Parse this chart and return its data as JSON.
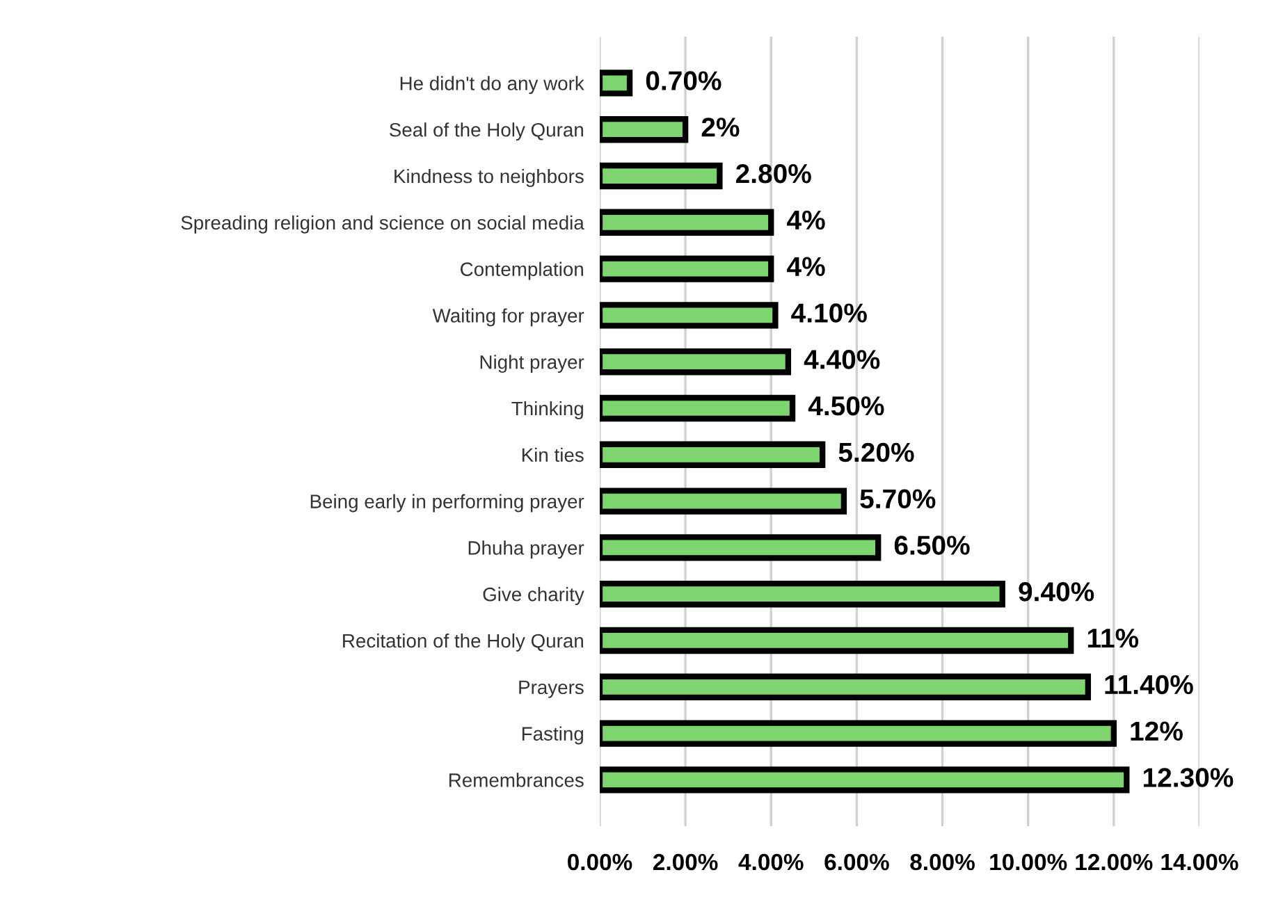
{
  "chart_data": {
    "type": "bar",
    "orientation": "horizontal",
    "categories": [
      "He didn't do any work",
      "Seal of the Holy Quran",
      "Kindness to neighbors",
      "Spreading religion and science on social media",
      "Contemplation",
      "Waiting for prayer",
      "Night prayer",
      "Thinking",
      "Kin ties",
      "Being early in performing prayer",
      "Dhuha prayer",
      "Give charity",
      "Recitation of the Holy Quran",
      "Prayers",
      "Fasting",
      "Remembrances"
    ],
    "values": [
      0.7,
      2,
      2.8,
      4,
      4,
      4.1,
      4.4,
      4.5,
      5.2,
      5.7,
      6.5,
      9.4,
      11,
      11.4,
      12,
      12.3
    ],
    "value_labels": [
      "0.70%",
      "2%",
      "2.80%",
      "4%",
      "4%",
      "4.10%",
      "4.40%",
      "4.50%",
      "5.20%",
      "5.70%",
      "6.50%",
      "9.40%",
      "11%",
      "11.40%",
      "12%",
      "12.30%"
    ],
    "color": "#7ed46e",
    "xlim": [
      0,
      14
    ],
    "xticks": [
      {
        "value": 0,
        "label": "0.00%"
      },
      {
        "value": 2,
        "label": "2.00%"
      },
      {
        "value": 4,
        "label": "4.00%"
      },
      {
        "value": 6,
        "label": "6.00%"
      },
      {
        "value": 8,
        "label": "8.00%"
      },
      {
        "value": 10,
        "label": "10.00%"
      },
      {
        "value": 12,
        "label": "12.00%"
      },
      {
        "value": 14,
        "label": "14.00%"
      }
    ],
    "grid": "x"
  }
}
